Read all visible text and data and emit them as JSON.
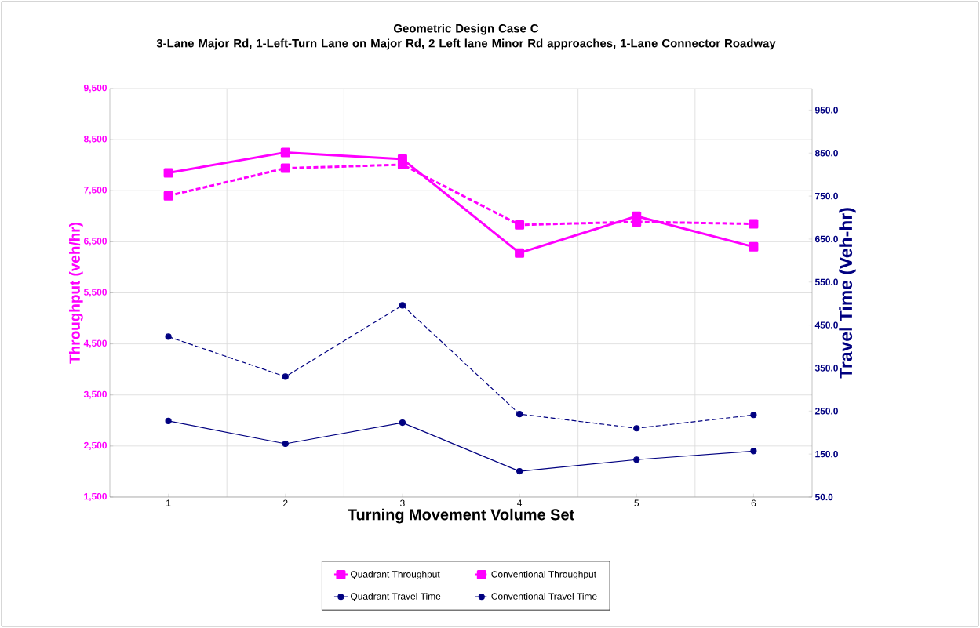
{
  "chart_data": {
    "type": "line",
    "title": "Geometric Design Case C",
    "subtitle": "3-Lane Major Rd, 1-Left-Turn Lane on Major Rd, 2 Left lane Minor Rd approaches, 1-Lane Connector Roadway",
    "xlabel": "Turning Movement Volume Set",
    "ylabel": "Throughput (veh/hr)",
    "y2label": "Travel Time (Veh-hr)",
    "categories": [
      "1",
      "2",
      "3",
      "4",
      "5",
      "6"
    ],
    "series": [
      {
        "name": "Quadrant Throughput",
        "color": "#ff00ff",
        "marker": "square",
        "line_style": "solid",
        "values": [
          7850,
          8250,
          8120,
          6280,
          7000,
          6400
        ]
      },
      {
        "name": "Conventional Throughput",
        "color": "#ff00ff",
        "marker": "square",
        "line_style": "dashed",
        "values": [
          7400,
          7940,
          8010,
          6830,
          6890,
          6850
        ]
      },
      {
        "name": "Quadrant Travel Time",
        "color": "#000080",
        "marker": "circle",
        "line_style": "solid",
        "axis": "y2",
        "values": [
          227,
          174,
          223,
          110,
          137,
          157
        ]
      },
      {
        "name": "Conventional Travel Time",
        "color": "#000080",
        "marker": "circle",
        "line_style": "dashed",
        "axis": "y2",
        "values": [
          423,
          330,
          496,
          243,
          210,
          241
        ]
      }
    ],
    "ylim": [
      1500,
      9500
    ],
    "yticks": [
      {
        "value": 1500,
        "label": "1,500"
      },
      {
        "value": 2500,
        "label": "2,500"
      },
      {
        "value": 3500,
        "label": "3,500"
      },
      {
        "value": 4500,
        "label": "4,500"
      },
      {
        "value": 5500,
        "label": "5,500"
      },
      {
        "value": 6500,
        "label": "6,500"
      },
      {
        "value": 7500,
        "label": "7,500"
      },
      {
        "value": 8500,
        "label": "8,500"
      },
      {
        "value": 9500,
        "label": "9,500"
      }
    ],
    "y2lim": [
      50,
      1000
    ],
    "y2ticks": [
      {
        "value": 50,
        "label": "50.0"
      },
      {
        "value": 150,
        "label": "150.0"
      },
      {
        "value": 250,
        "label": "250.0"
      },
      {
        "value": 350,
        "label": "350.0"
      },
      {
        "value": 450,
        "label": "450.0"
      },
      {
        "value": 550,
        "label": "550.0"
      },
      {
        "value": 650,
        "label": "650.0"
      },
      {
        "value": 750,
        "label": "750.0"
      },
      {
        "value": 850,
        "label": "850.0"
      },
      {
        "value": 950,
        "label": "950.0"
      }
    ],
    "grid": true,
    "legend": "bottom"
  }
}
